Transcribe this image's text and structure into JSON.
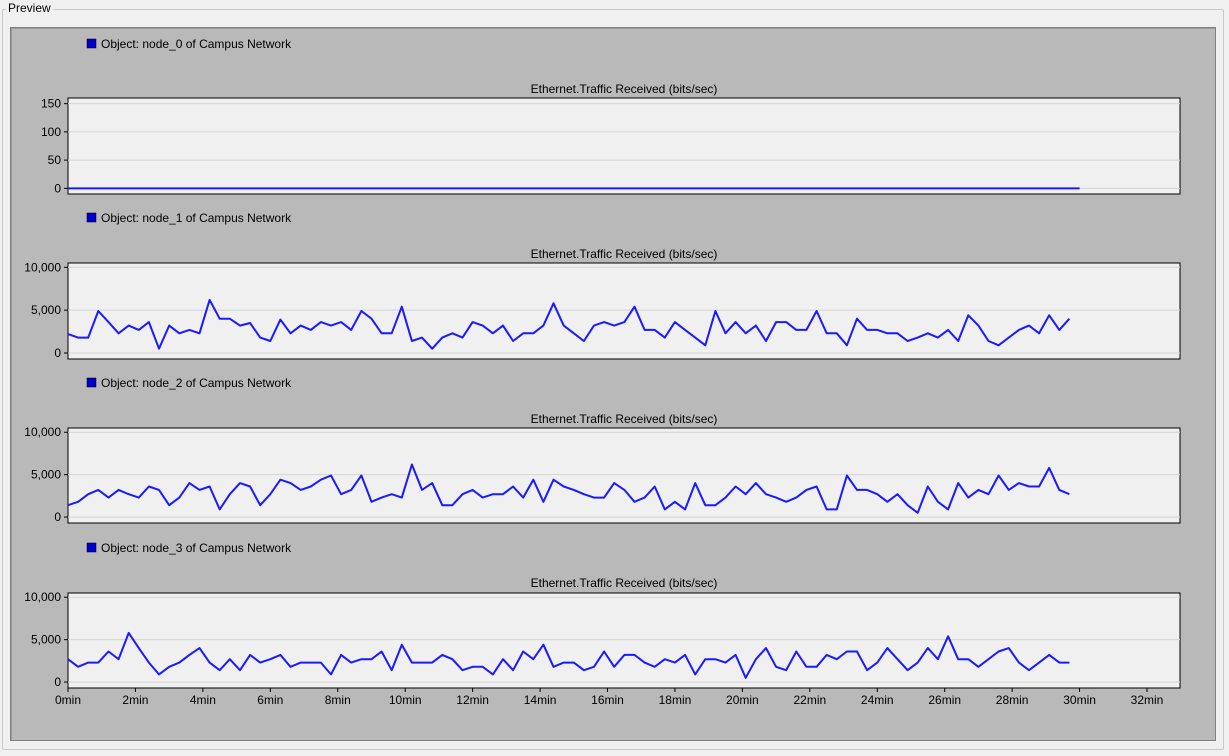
{
  "groupbox": {
    "title": "Preview"
  },
  "chart_data": {
    "type": "line",
    "line_color": "#1a1aff",
    "plot_bg": "#f0f0f0",
    "panel_bg": "#b9b9b9",
    "xlim": [
      0,
      33
    ],
    "x_unit": "min",
    "x_ticks": [
      {
        "value": 0,
        "label": "0min"
      },
      {
        "value": 2,
        "label": "2min"
      },
      {
        "value": 4,
        "label": "4min"
      },
      {
        "value": 6,
        "label": "6min"
      },
      {
        "value": 8,
        "label": "8min"
      },
      {
        "value": 10,
        "label": "10min"
      },
      {
        "value": 12,
        "label": "12min"
      },
      {
        "value": 14,
        "label": "14min"
      },
      {
        "value": 16,
        "label": "16min"
      },
      {
        "value": 18,
        "label": "18min"
      },
      {
        "value": 20,
        "label": "20min"
      },
      {
        "value": 22,
        "label": "22min"
      },
      {
        "value": 24,
        "label": "24min"
      },
      {
        "value": 26,
        "label": "26min"
      },
      {
        "value": 28,
        "label": "28min"
      },
      {
        "value": 30,
        "label": "30min"
      },
      {
        "value": 32,
        "label": "32min"
      }
    ],
    "x_start": 0,
    "x_step": 0.3,
    "panels": [
      {
        "legend": "Object: node_0 of Campus Network",
        "title": "Ethernet.Traffic Received (bits/sec)",
        "ylim": [
          -10,
          160
        ],
        "y_ticks": [
          {
            "value": 0,
            "label": "0"
          },
          {
            "value": 50,
            "label": "50"
          },
          {
            "value": 100,
            "label": "100"
          },
          {
            "value": 150,
            "label": "150"
          }
        ],
        "series": [
          {
            "x": [
              0,
              30
            ],
            "values": [
              0,
              0
            ]
          }
        ]
      },
      {
        "legend": "Object: node_1 of Campus Network",
        "title": "Ethernet.Traffic Received (bits/sec)",
        "ylim": [
          -700,
          10500
        ],
        "y_ticks": [
          {
            "value": 0,
            "label": "0"
          },
          {
            "value": 5000,
            "label": "5,000"
          },
          {
            "value": 10000,
            "label": "10,000"
          }
        ],
        "series": [
          {
            "values": [
              2200,
              1800,
              1800,
              4900,
              3600,
              2300,
              3200,
              2700,
              3600,
              500,
              3200,
              2300,
              2700,
              2300,
              6200,
              4000,
              4000,
              3200,
              3500,
              1800,
              1400,
              3900,
              2300,
              3200,
              2700,
              3600,
              3200,
              3600,
              2700,
              4900,
              4000,
              2300,
              2300,
              5400,
              1400,
              1800,
              500,
              1800,
              2300,
              1800,
              3600,
              3200,
              2300,
              3200,
              1400,
              2300,
              2300,
              3200,
              5800,
              3200,
              2300,
              1400,
              3200,
              3600,
              3200,
              3600,
              5400,
              2700,
              2700,
              1800,
              3600,
              2700,
              1800,
              900,
              4900,
              2300,
              3600,
              2300,
              3200,
              1400,
              3600,
              3600,
              2700,
              2700,
              4900,
              2300,
              2300,
              900,
              4000,
              2700,
              2700,
              2300,
              2300,
              1400,
              1800,
              2300,
              1800,
              2700,
              1400,
              4400,
              3200,
              1400,
              900,
              1800,
              2700,
              3200,
              2300,
              4400,
              2700,
              4000
            ]
          }
        ]
      },
      {
        "legend": "Object: node_2 of Campus Network",
        "title": "Ethernet.Traffic Received (bits/sec)",
        "ylim": [
          -700,
          10500
        ],
        "y_ticks": [
          {
            "value": 0,
            "label": "0"
          },
          {
            "value": 5000,
            "label": "5,000"
          },
          {
            "value": 10000,
            "label": "10,000"
          }
        ],
        "series": [
          {
            "values": [
              1400,
              1800,
              2700,
              3200,
              2300,
              3200,
              2700,
              2300,
              3600,
              3200,
              1400,
              2300,
              4000,
              3200,
              3600,
              900,
              2700,
              4000,
              3600,
              1400,
              2700,
              4400,
              4000,
              3200,
              3600,
              4400,
              4900,
              2700,
              3200,
              4900,
              1800,
              2300,
              2700,
              2300,
              6200,
              3200,
              4000,
              1400,
              1400,
              2700,
              3200,
              2300,
              2700,
              2700,
              3600,
              2300,
              4400,
              1800,
              4400,
              3600,
              3200,
              2700,
              2300,
              2300,
              4000,
              3200,
              1800,
              2300,
              3600,
              900,
              1800,
              900,
              4000,
              1400,
              1400,
              2300,
              3600,
              2700,
              4000,
              2700,
              2300,
              1800,
              2300,
              3200,
              3600,
              900,
              900,
              4900,
              3200,
              3200,
              2700,
              1800,
              2700,
              1400,
              500,
              3600,
              1800,
              900,
              4000,
              2300,
              3200,
              2700,
              4900,
              3200,
              4000,
              3600,
              3600,
              5800,
              3200,
              2700
            ]
          }
        ]
      },
      {
        "legend": "Object: node_3 of Campus Network",
        "title": "Ethernet.Traffic Received (bits/sec)",
        "ylim": [
          -700,
          10500
        ],
        "y_ticks": [
          {
            "value": 0,
            "label": "0"
          },
          {
            "value": 5000,
            "label": "5,000"
          },
          {
            "value": 10000,
            "label": "10,000"
          }
        ],
        "series": [
          {
            "values": [
              2700,
              1800,
              2300,
              2300,
              3600,
              2700,
              5800,
              4000,
              2300,
              900,
              1800,
              2300,
              3200,
              4000,
              2300,
              1400,
              2700,
              1400,
              3200,
              2300,
              2700,
              3200,
              1800,
              2300,
              2300,
              2300,
              900,
              3200,
              2300,
              2700,
              2700,
              3600,
              1400,
              4400,
              2300,
              2300,
              2300,
              3200,
              2700,
              1400,
              1800,
              1800,
              900,
              2700,
              1400,
              3600,
              2700,
              4400,
              1800,
              2300,
              2300,
              1400,
              1800,
              3600,
              1800,
              3200,
              3200,
              2300,
              1800,
              2700,
              2300,
              3200,
              900,
              2700,
              2700,
              2300,
              3200,
              500,
              2700,
              4000,
              1800,
              1400,
              3600,
              1800,
              1800,
              3200,
              2700,
              3600,
              3600,
              1400,
              2300,
              4000,
              2700,
              1400,
              2300,
              4000,
              2700,
              5400,
              2700,
              2700,
              1800,
              2700,
              3600,
              4000,
              2300,
              1400,
              2300,
              3200,
              2300,
              2300
            ]
          }
        ]
      }
    ]
  }
}
